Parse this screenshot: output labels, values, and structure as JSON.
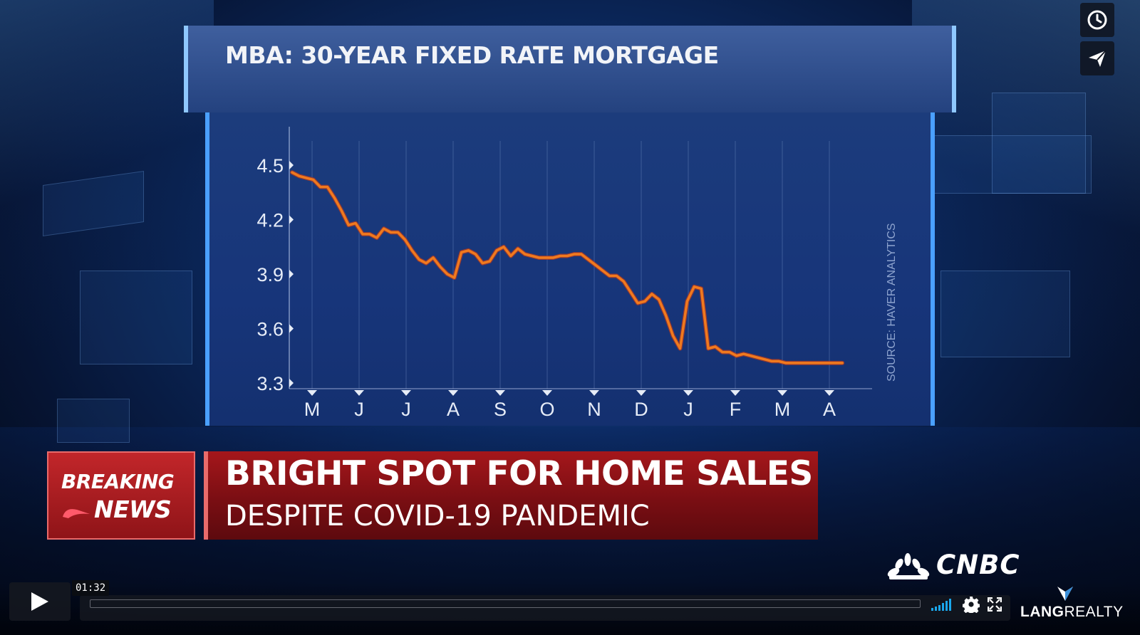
{
  "chart_data": {
    "type": "line",
    "title": "MBA: 30-YEAR FIXED RATE MORTGAGE",
    "source_note": "SOURCE: HAVER ANALYTICS",
    "x_tick_labels": [
      "M",
      "J",
      "J",
      "A",
      "S",
      "O",
      "N",
      "D",
      "J",
      "F",
      "M",
      "A"
    ],
    "y_tick_labels": [
      "4.5",
      "4.2",
      "3.9",
      "3.6",
      "3.3"
    ],
    "ylim": [
      3.3,
      4.5
    ],
    "grid": true,
    "series": [
      {
        "color": "#f07a1e",
        "x": [
          0,
          0.15,
          0.3,
          0.45,
          0.6,
          0.75,
          0.9,
          1.05,
          1.2,
          1.35,
          1.5,
          1.65,
          1.8,
          1.95,
          2.1,
          2.25,
          2.4,
          2.55,
          2.7,
          2.85,
          3.0,
          3.15,
          3.3,
          3.45,
          3.6,
          3.75,
          3.9,
          4.05,
          4.2,
          4.35,
          4.5,
          4.65,
          4.8,
          4.95,
          5.1,
          5.25,
          5.4,
          5.55,
          5.7,
          5.85,
          6.0,
          6.15,
          6.3,
          6.45,
          6.6,
          6.75,
          6.9,
          7.05,
          7.2,
          7.35,
          7.5,
          7.65,
          7.8,
          7.95,
          8.1,
          8.25,
          8.4,
          8.55,
          8.7,
          8.85,
          9.0,
          9.15,
          9.3,
          9.45,
          9.6,
          9.75,
          9.9,
          10.05,
          10.2,
          10.35,
          10.5,
          10.65,
          10.8,
          10.95,
          11.1,
          11.25,
          11.4,
          11.55,
          11.7
        ],
        "values": [
          4.46,
          4.44,
          4.43,
          4.42,
          4.38,
          4.38,
          4.32,
          4.25,
          4.17,
          4.18,
          4.12,
          4.12,
          4.1,
          4.15,
          4.13,
          4.13,
          4.09,
          4.03,
          3.98,
          3.96,
          3.99,
          3.94,
          3.9,
          3.88,
          4.02,
          4.03,
          4.01,
          3.96,
          3.97,
          4.03,
          4.05,
          4.0,
          4.04,
          4.01,
          4.0,
          3.99,
          3.99,
          3.99,
          4.0,
          4.0,
          4.01,
          4.01,
          3.98,
          3.95,
          3.92,
          3.89,
          3.89,
          3.86,
          3.8,
          3.74,
          3.75,
          3.79,
          3.76,
          3.67,
          3.56,
          3.49,
          3.75,
          3.83,
          3.82,
          3.49,
          3.5,
          3.47,
          3.47,
          3.45,
          3.46,
          3.45,
          3.44,
          3.43,
          3.42,
          3.42,
          3.41,
          3.41,
          3.41,
          3.41,
          3.41,
          3.41,
          3.41,
          3.41,
          3.41
        ]
      }
    ]
  },
  "lower_third": {
    "breaking_line1": "BREAKING",
    "breaking_line2": "NEWS",
    "headline": "BRIGHT SPOT FOR HOME SALES",
    "subheadline": "DESPITE COVID-19 PANDEMIC"
  },
  "network_logo": "CNBC",
  "player": {
    "current_time": "01:32",
    "progress": 0.0
  },
  "sponsor": {
    "name_part1": "LANG",
    "name_part2": "REALTY"
  },
  "icons": {
    "watch_later": "clock-icon",
    "share": "paper-plane-icon",
    "play": "play-icon",
    "volume": "volume-bars-icon",
    "settings": "gear-icon",
    "fullscreen": "fullscreen-icon"
  },
  "colors": {
    "line": "#f07a1e",
    "breaking_red": "#c2262a",
    "headline_red": "#8f1418",
    "chart_bg": "#1c3c7c",
    "player_accent": "#1aa7ec"
  }
}
